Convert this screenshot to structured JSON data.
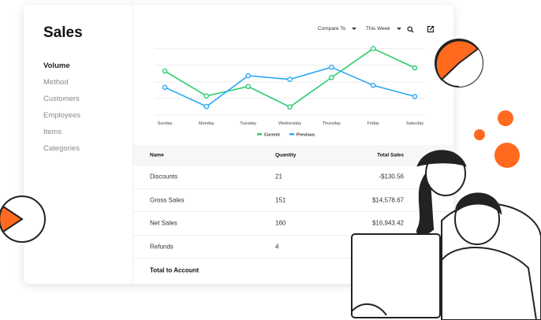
{
  "sidebar": {
    "title": "Sales",
    "items": [
      {
        "label": "Volume",
        "active": true
      },
      {
        "label": "Method"
      },
      {
        "label": "Customers"
      },
      {
        "label": "Employees"
      },
      {
        "label": "Items"
      },
      {
        "label": "Categories"
      }
    ]
  },
  "toolbar": {
    "compare_label": "Compare To",
    "period_label": "This Week",
    "search_icon": "search-icon",
    "export_icon": "export-icon"
  },
  "chart_data": {
    "type": "line",
    "categories": [
      "Sunday",
      "Monday",
      "Tuesday",
      "Wednesday",
      "Thursday",
      "Friday",
      "Saturday"
    ],
    "ylim": [
      0,
      4
    ],
    "grid": true,
    "legend_placement": "bottom",
    "series": [
      {
        "name": "Current",
        "color": "#2ecc71",
        "values": [
          2.65,
          1.15,
          1.72,
          0.49,
          2.26,
          4.0,
          2.84
        ]
      },
      {
        "name": "Previous",
        "color": "#2aa8f5",
        "values": [
          1.67,
          0.52,
          2.37,
          2.15,
          2.88,
          1.79,
          1.12
        ]
      }
    ]
  },
  "table": {
    "headers": [
      "Name",
      "Quantity",
      "Total Sales"
    ],
    "rows": [
      [
        "Discounts",
        "21",
        "-$130.56"
      ],
      [
        "Gross Sales",
        "151",
        "$14,578.67"
      ],
      [
        "Net Sales",
        "160",
        "$16,943.42"
      ],
      [
        "Refunds",
        "4",
        ""
      ]
    ],
    "total_label": "Total to Account"
  },
  "colors": {
    "accent": "#ff6a1f"
  }
}
